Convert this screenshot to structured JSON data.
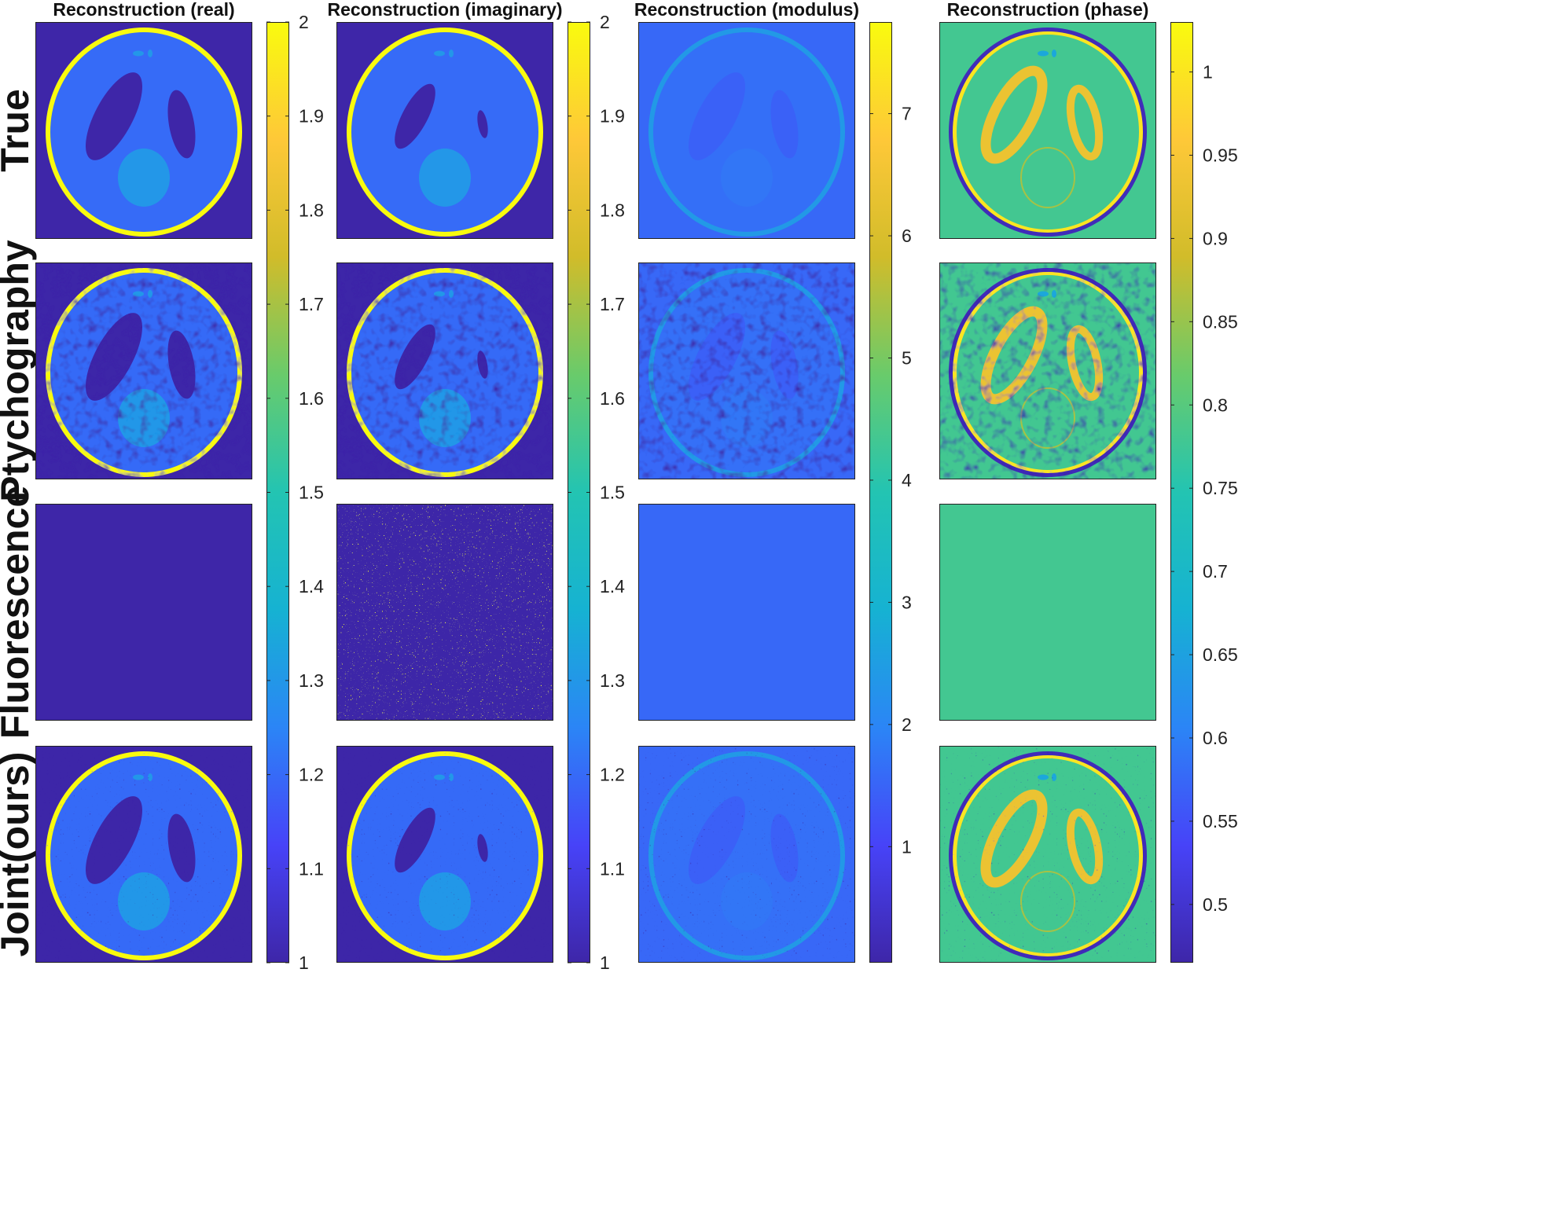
{
  "chart_data": {
    "type": "heatmap",
    "layout": "4 rows x 4 columns grid of reconstruction images, each column with its own colorbar",
    "colormap": "parula",
    "colors": {
      "parula_stops": [
        "#3e26a8",
        "#4743f8",
        "#2b85f6",
        "#16b2d2",
        "#23c4b2",
        "#69cb6b",
        "#d1bc2a",
        "#fec838",
        "#f9fb0e"
      ]
    },
    "columns": [
      {
        "title": "Reconstruction (real)",
        "clim": [
          1,
          2
        ],
        "ticks": [
          "1",
          "1.1",
          "1.2",
          "1.3",
          "1.4",
          "1.5",
          "1.6",
          "1.7",
          "1.8",
          "1.9",
          "2"
        ],
        "tick_values": [
          1,
          1.1,
          1.2,
          1.3,
          1.4,
          1.5,
          1.6,
          1.7,
          1.8,
          1.9,
          2
        ]
      },
      {
        "title": "Reconstruction (imaginary)",
        "clim": [
          1,
          2
        ],
        "ticks": [
          "1",
          "1.1",
          "1.2",
          "1.3",
          "1.4",
          "1.5",
          "1.6",
          "1.7",
          "1.8",
          "1.9",
          "2"
        ],
        "tick_values": [
          1,
          1.1,
          1.2,
          1.3,
          1.4,
          1.5,
          1.6,
          1.7,
          1.8,
          1.9,
          2
        ]
      },
      {
        "title": "Reconstruction (modulus)",
        "clim": [
          0.05,
          7.75
        ],
        "ticks": [
          "1",
          "2",
          "3",
          "4",
          "5",
          "6",
          "7"
        ],
        "tick_values": [
          1,
          2,
          3,
          4,
          5,
          6,
          7
        ]
      },
      {
        "title": "Reconstruction (phase)",
        "clim": [
          0.465,
          1.03
        ],
        "ticks": [
          "0.5",
          "0.55",
          "0.6",
          "0.65",
          "0.7",
          "0.75",
          "0.8",
          "0.85",
          "0.9",
          "0.95",
          "1"
        ],
        "tick_values": [
          0.5,
          0.55,
          0.6,
          0.65,
          0.7,
          0.75,
          0.8,
          0.85,
          0.9,
          0.95,
          1
        ]
      }
    ],
    "rows": [
      {
        "label": "True"
      },
      {
        "label": "Ptychography"
      },
      {
        "label": "Fluorescence"
      },
      {
        "label": "Joint(ours)"
      }
    ],
    "panel_regions": {
      "real": {
        "background": 1.0,
        "ellipse_shell": 2.0,
        "interior": 1.2,
        "dark_ellipses": 1.0,
        "center_disk": 1.3,
        "small_spots": 1.3
      },
      "imaginary": {
        "background": 1.0,
        "ellipse_shell": 2.0,
        "interior": 1.2,
        "dark_ellipses": 1.0,
        "center_disk": 1.3,
        "small_spots": 1.3
      },
      "modulus": {
        "background": 1.55,
        "ellipse_shell": 2.4,
        "interior": 1.65,
        "dark_ellipses": 1.45,
        "center_disk": 1.75
      },
      "phase": {
        "background": 0.78,
        "outer_ring_dark": 0.48,
        "outer_ring_bright": 1.0,
        "ring_ellipses": 0.93,
        "center_ring": 0.86,
        "small_spots": 0.66
      }
    },
    "panel_states": [
      [
        "phantom",
        "phantom",
        "phantom",
        "phantom"
      ],
      [
        "noisy",
        "noisy",
        "noisy",
        "noisy"
      ],
      [
        "flat-min",
        "random",
        "flat",
        "flat"
      ],
      [
        "denoised",
        "denoised",
        "denoised",
        "denoised"
      ]
    ],
    "flat_values": {
      "real": 1.0,
      "modulus": 1.55,
      "phase": 0.78
    }
  }
}
